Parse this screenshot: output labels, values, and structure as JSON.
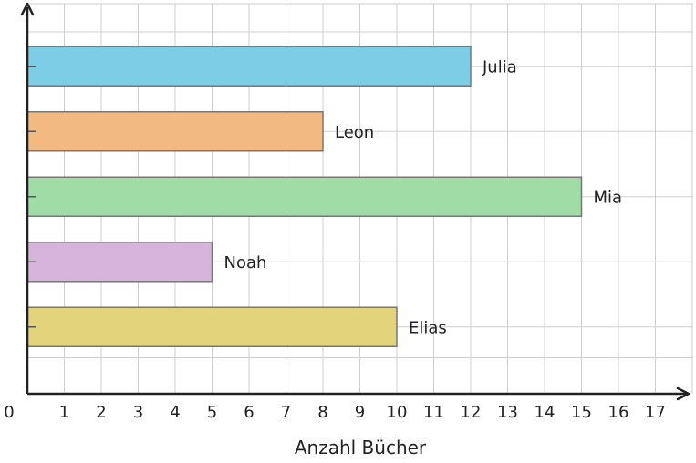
{
  "chart_data": {
    "type": "bar",
    "orientation": "horizontal",
    "title": "",
    "xlabel": "Anzahl Bücher",
    "ylabel": "",
    "categories": [
      "Julia",
      "Leon",
      "Mia",
      "Noah",
      "Elias"
    ],
    "values": [
      12,
      8,
      15,
      5,
      10
    ],
    "colors": [
      "#7ecde6",
      "#f3b983",
      "#a0dca6",
      "#d7b4dc",
      "#e3d37b"
    ],
    "xlim": [
      0,
      17
    ],
    "xticks": [
      0,
      1,
      2,
      3,
      4,
      5,
      6,
      7,
      8,
      9,
      10,
      11,
      12,
      13,
      14,
      15,
      16,
      17
    ],
    "grid": true,
    "legend": "none",
    "category_labels_position": "end-of-bar"
  }
}
